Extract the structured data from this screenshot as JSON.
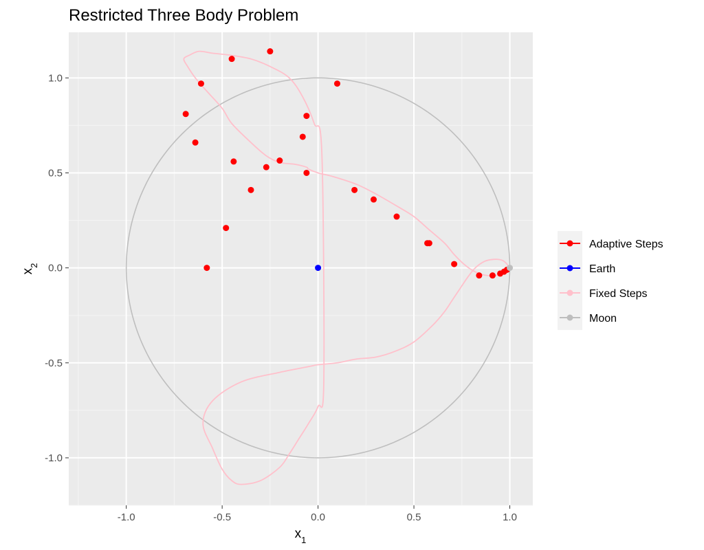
{
  "colors": {
    "panel_bg": "#EBEBEB",
    "grid_major": "#FFFFFF",
    "adaptive": "#FF0000",
    "earth": "#0000FF",
    "fixed": "#FFC0CB",
    "moon": "#BEBEBE",
    "tick_text": "#4D4D4D",
    "legend_key_bg": "#F2F2F2"
  },
  "chart_data": {
    "type": "scatter",
    "title": "Restricted Three Body Problem",
    "xlabel_base": "x",
    "xlabel_sub": "1",
    "ylabel_base": "x",
    "ylabel_sub": "2",
    "xlim": [
      -1.3,
      1.12
    ],
    "ylim": [
      -1.25,
      1.24
    ],
    "x_ticks": [
      -1.0,
      -0.5,
      0.0,
      0.5,
      1.0
    ],
    "x_tick_labels": [
      "-1.0",
      "-0.5",
      "0.0",
      "0.5",
      "1.0"
    ],
    "y_ticks": [
      1.0,
      0.5,
      0.0,
      -0.5,
      -1.0
    ],
    "y_tick_labels": [
      "1.0",
      "0.5",
      "0.0",
      "-0.5",
      "-1.0"
    ],
    "grid": true,
    "legend_position": "right",
    "legend": [
      {
        "label": "Adaptive Steps",
        "color": "#FF0000"
      },
      {
        "label": "Earth",
        "color": "#0000FF"
      },
      {
        "label": "Fixed Steps",
        "color": "#FFC0CB"
      },
      {
        "label": "Moon",
        "color": "#BEBEBE"
      }
    ],
    "series": [
      {
        "name": "Moon",
        "kind": "path+point",
        "color": "#BEBEBE",
        "orbit": {
          "center": [
            0,
            0
          ],
          "radius": 1.0
        },
        "point": [
          1.0,
          0.0
        ]
      },
      {
        "name": "Fixed Steps",
        "kind": "path",
        "color": "#FFC0CB",
        "x": [
          0.994,
          0.985,
          0.96,
          0.92,
          0.87,
          0.82,
          0.78,
          0.74,
          0.7,
          0.66,
          0.6,
          0.5,
          0.4,
          0.3,
          0.2,
          0.1,
          0.0,
          -0.05,
          -0.2,
          -0.4,
          -0.55,
          -0.6,
          -0.55,
          -0.5,
          -0.45,
          -0.4,
          -0.3,
          -0.2,
          -0.15,
          -0.1,
          -0.05,
          0.0,
          0.03,
          0.02,
          -0.02,
          -0.08,
          -0.15,
          -0.25,
          -0.35,
          -0.46,
          -0.55,
          -0.62,
          -0.67,
          -0.7,
          -0.68,
          -0.64,
          -0.58,
          -0.5,
          -0.45,
          -0.35,
          -0.27,
          -0.2,
          -0.12,
          -0.06,
          -0.05,
          0.0,
          0.08,
          0.2,
          0.3,
          0.42,
          0.5,
          0.58,
          0.66,
          0.71,
          0.76,
          0.8,
          0.84,
          0.88,
          0.91,
          0.94,
          0.96,
          0.975,
          0.985,
          0.994
        ],
        "y": [
          0.0,
          0.02,
          0.04,
          0.045,
          0.035,
          0.0,
          -0.05,
          -0.11,
          -0.17,
          -0.23,
          -0.3,
          -0.39,
          -0.44,
          -0.47,
          -0.48,
          -0.5,
          -0.51,
          -0.52,
          -0.55,
          -0.6,
          -0.7,
          -0.82,
          -0.95,
          -1.06,
          -1.12,
          -1.14,
          -1.12,
          -1.05,
          -0.98,
          -0.9,
          -0.82,
          -0.73,
          -0.6,
          0.6,
          0.76,
          0.9,
          1.0,
          1.06,
          1.1,
          1.12,
          1.13,
          1.14,
          1.12,
          1.1,
          1.06,
          1.0,
          0.93,
          0.84,
          0.76,
          0.66,
          0.59,
          0.555,
          0.545,
          0.53,
          0.52,
          0.5,
          0.48,
          0.44,
          0.39,
          0.32,
          0.27,
          0.2,
          0.13,
          0.07,
          0.02,
          -0.01,
          -0.03,
          -0.04,
          -0.042,
          -0.036,
          -0.025,
          -0.015,
          -0.007,
          0.0
        ]
      },
      {
        "name": "Adaptive Steps",
        "kind": "points",
        "color": "#FF0000",
        "x": [
          -0.25,
          -0.45,
          -0.61,
          -0.69,
          -0.64,
          -0.44,
          -0.27,
          -0.2,
          -0.06,
          -0.08,
          -0.06,
          0.1,
          0.19,
          0.29,
          0.58,
          0.41,
          0.57,
          0.71,
          0.84,
          0.91,
          0.95,
          0.97,
          0.985,
          -0.58,
          -0.48,
          -0.35
        ],
        "y": [
          1.14,
          1.1,
          0.97,
          0.81,
          0.66,
          0.56,
          0.53,
          0.565,
          0.5,
          0.69,
          0.8,
          0.97,
          0.41,
          0.36,
          0.13,
          0.27,
          0.13,
          0.02,
          -0.04,
          -0.04,
          -0.03,
          -0.02,
          -0.01,
          0.0,
          0.21,
          0.41
        ]
      },
      {
        "name": "Earth",
        "kind": "point",
        "color": "#0000FF",
        "point": [
          0.0,
          0.0
        ]
      }
    ]
  }
}
